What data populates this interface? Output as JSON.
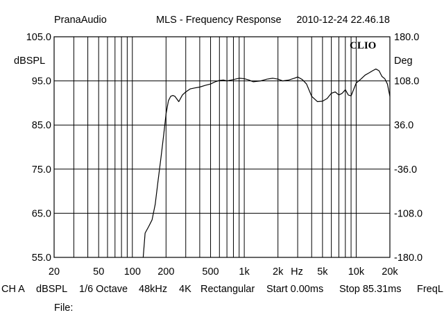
{
  "header": {
    "brand": "PranaAudio",
    "measurement_title": "MLS - Frequency Response",
    "timestamp": "2010-12-24 22.46.18",
    "logo_text": "CLIO"
  },
  "status_bar": {
    "channel": "CH A",
    "unit": "dBSPL",
    "smoothing": "1/6 Octave",
    "sample_rate": "48kHz",
    "fft_size": "4K",
    "window": "Rectangular",
    "start": "Start 0.00ms",
    "stop": "Stop 85.31ms",
    "freq_label": "FreqL",
    "file_label": "File:"
  },
  "colors": {
    "background": "#ffffff",
    "grid": "#000000",
    "trace": "#000000"
  },
  "chart_data": {
    "type": "line",
    "title": "MLS - Frequency Response",
    "xscale": "log",
    "xlim": [
      20,
      20000
    ],
    "xlabel": "Hz",
    "x_ticks": [
      {
        "value": 20,
        "label": "20"
      },
      {
        "value": 50,
        "label": "50"
      },
      {
        "value": 100,
        "label": "100"
      },
      {
        "value": 200,
        "label": "200"
      },
      {
        "value": 500,
        "label": "500"
      },
      {
        "value": 1000,
        "label": "1k"
      },
      {
        "value": 2000,
        "label": "2k"
      },
      {
        "value": 5000,
        "label": "5k"
      },
      {
        "value": 10000,
        "label": "10k"
      },
      {
        "value": 20000,
        "label": "20k"
      }
    ],
    "ylabel": "dBSPL",
    "ylim": [
      55,
      105
    ],
    "y_ticks": [
      "55.0",
      "65.0",
      "75.0",
      "85.0",
      "95.0",
      "105.0"
    ],
    "y2label": "Deg",
    "y2lim": [
      -180,
      180
    ],
    "y2_ticks": [
      "-180.0",
      "-108.0",
      "-36.0",
      "36.0",
      "108.0",
      "180.0"
    ],
    "grid": true,
    "series": [
      {
        "x": [
          125,
          130,
          140,
          150,
          160,
          170,
          180,
          190,
          200,
          210,
          220,
          230,
          240,
          260,
          280,
          300,
          330,
          360,
          400,
          450,
          500,
          550,
          600,
          650,
          700,
          800,
          900,
          1000,
          1100,
          1200,
          1400,
          1600,
          1800,
          2000,
          2200,
          2500,
          2800,
          3000,
          3300,
          3600,
          4000,
          4500,
          5000,
          5500,
          6000,
          6500,
          7000,
          7500,
          8000,
          8500,
          9000,
          10000,
          11000,
          12000,
          13000,
          14000,
          15000,
          16000,
          17000,
          18000,
          19000,
          20000
        ],
        "y": [
          55.0,
          60.5,
          62.0,
          63.5,
          67.0,
          72.5,
          77.5,
          82.5,
          87.5,
          90.5,
          91.5,
          91.7,
          91.5,
          90.3,
          91.8,
          92.5,
          93.2,
          93.4,
          93.6,
          94.0,
          94.3,
          94.8,
          95.1,
          95.2,
          95.0,
          95.3,
          95.6,
          95.5,
          95.2,
          94.8,
          95.0,
          95.4,
          95.6,
          95.4,
          95.0,
          95.2,
          95.6,
          95.9,
          95.3,
          94.3,
          91.5,
          90.3,
          90.4,
          91.0,
          92.2,
          92.5,
          91.8,
          92.2,
          93.0,
          91.8,
          91.6,
          94.5,
          95.4,
          96.3,
          96.8,
          97.3,
          97.7,
          97.3,
          96.0,
          95.5,
          94.3,
          91.5
        ]
      }
    ]
  }
}
